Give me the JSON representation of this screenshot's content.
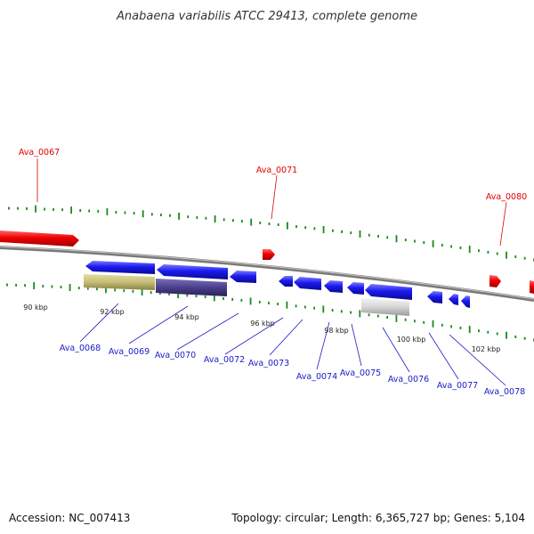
{
  "title": "Anabaena variabilis ATCC 29413, complete genome",
  "footer": {
    "accession": "Accession: NC_007413",
    "topology": "Topology: circular; Length: 6,365,727 bp; Genes: 5,104"
  },
  "colors": {
    "forward_strand": "#e8000a",
    "reverse_strand": "#1a1aee",
    "forward_label": "#e00000",
    "reverse_label": "#1a1ac8",
    "tick": "#1a8a1a",
    "backbone": "#888888"
  },
  "scale_labels": [
    "90 kbp",
    "92 kbp",
    "94 kbp",
    "96 kbp",
    "98 kbp",
    "100 kbp",
    "102 kbp"
  ],
  "forward_genes": [
    "Ava_0067",
    "Ava_0071",
    "Ava_0080"
  ],
  "reverse_genes": [
    "Ava_0068",
    "Ava_0069",
    "Ava_0070",
    "Ava_0072",
    "Ava_0073",
    "Ava_0074",
    "Ava_0075",
    "Ava_0076",
    "Ava_0077",
    "Ava_0078"
  ]
}
